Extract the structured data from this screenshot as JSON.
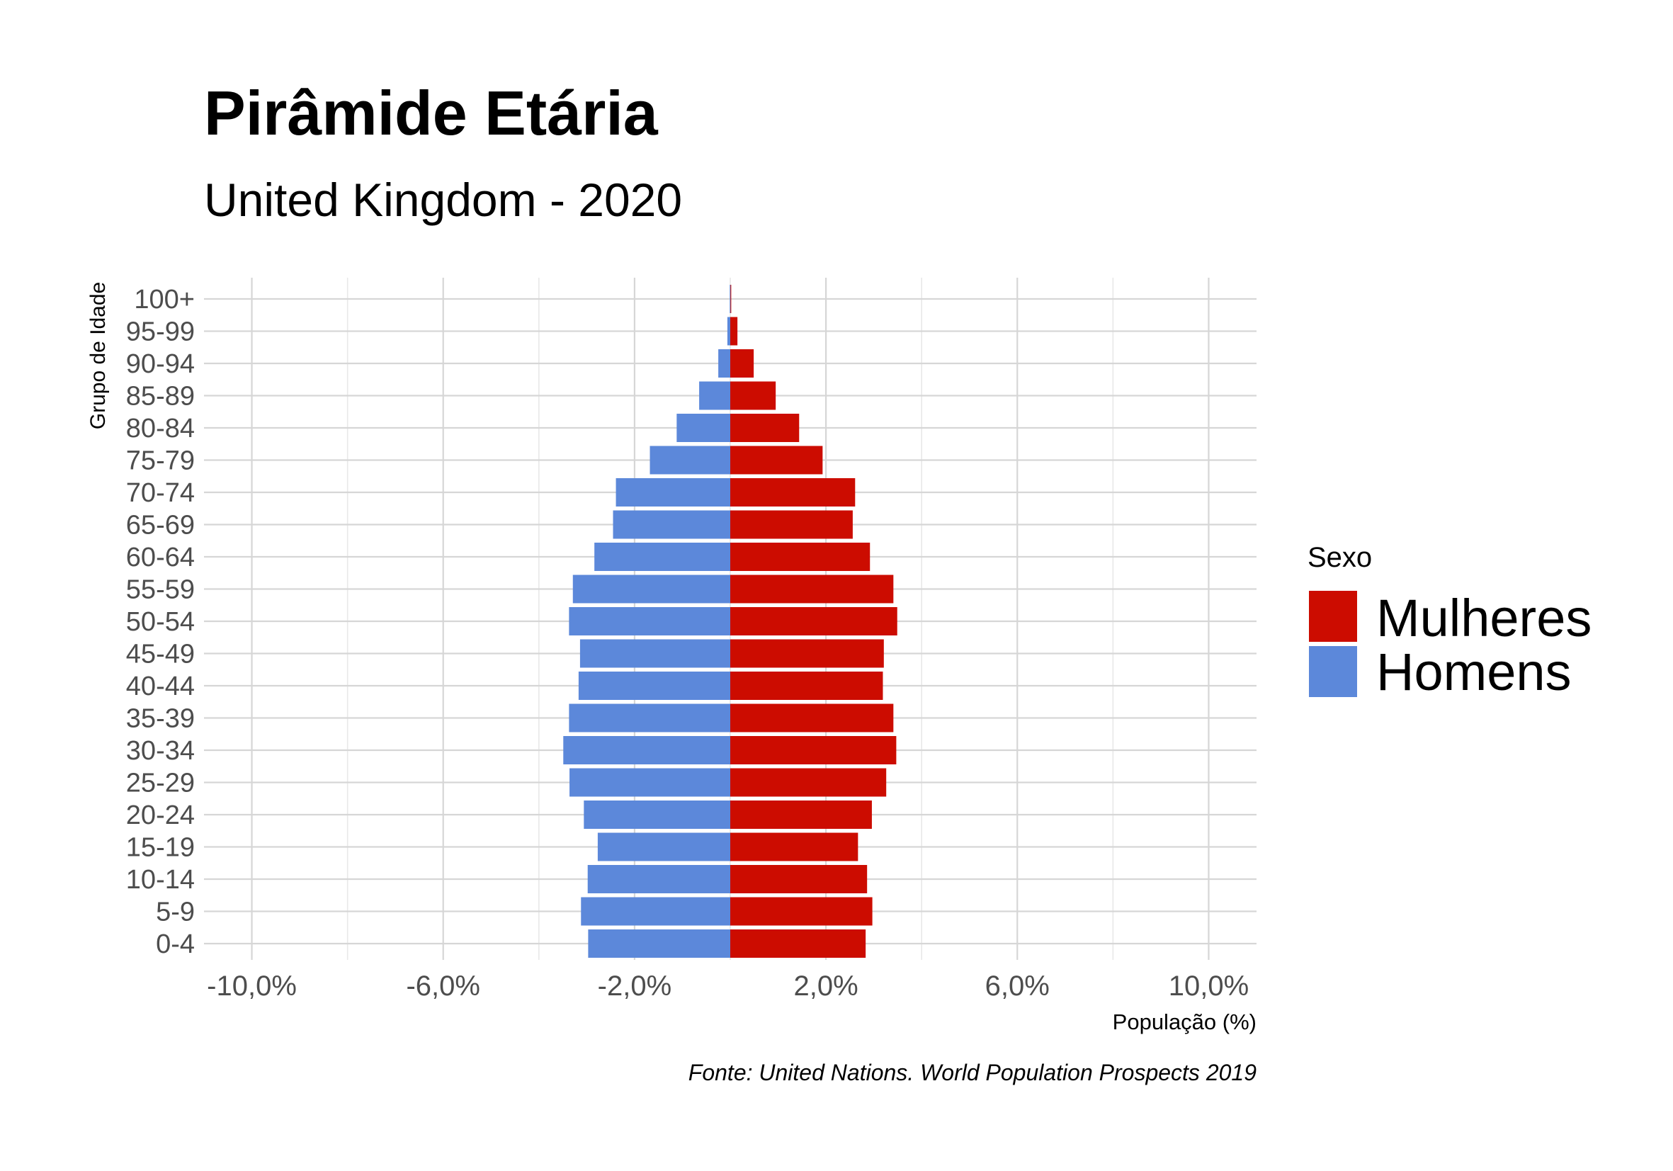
{
  "chart_data": {
    "type": "bar",
    "orientation": "horizontal",
    "title": "Pirâmide Etária",
    "subtitle": "United Kingdom - 2020",
    "xlabel": "População (%)",
    "ylabel": "Grupo de Idade",
    "caption": "Fonte: United Nations. World Population Prospects 2019",
    "xlim": [
      -11,
      11
    ],
    "x_ticks": [
      -10,
      -6,
      -2,
      2,
      6,
      10
    ],
    "x_tick_labels": [
      "-10,0%",
      "-6,0%",
      "-2,0%",
      "2,0%",
      "6,0%",
      "10,0%"
    ],
    "grid": true,
    "legend": {
      "title": "Sexo",
      "position": "right",
      "items": [
        {
          "label": "Mulheres",
          "color": "#CC0C00"
        },
        {
          "label": "Homens",
          "color": "#5C88DA"
        }
      ]
    },
    "categories": [
      "0-4",
      "5-9",
      "10-14",
      "15-19",
      "20-24",
      "25-29",
      "30-34",
      "35-39",
      "40-44",
      "45-49",
      "50-54",
      "55-59",
      "60-64",
      "65-69",
      "70-74",
      "75-79",
      "80-84",
      "85-89",
      "90-94",
      "95-99",
      "100+"
    ],
    "series": [
      {
        "name": "Mulheres",
        "color": "#CC0C00",
        "values": [
          2.83,
          2.97,
          2.86,
          2.67,
          2.96,
          3.26,
          3.47,
          3.41,
          3.19,
          3.21,
          3.49,
          3.41,
          2.92,
          2.56,
          2.61,
          1.93,
          1.44,
          0.95,
          0.49,
          0.15,
          0.02
        ]
      },
      {
        "name": "Homens",
        "color": "#5C88DA",
        "values": [
          -2.97,
          -3.12,
          -2.98,
          -2.77,
          -3.06,
          -3.36,
          -3.49,
          -3.37,
          -3.17,
          -3.14,
          -3.37,
          -3.29,
          -2.84,
          -2.45,
          -2.39,
          -1.68,
          -1.12,
          -0.65,
          -0.25,
          -0.06,
          -0.01
        ]
      }
    ]
  }
}
